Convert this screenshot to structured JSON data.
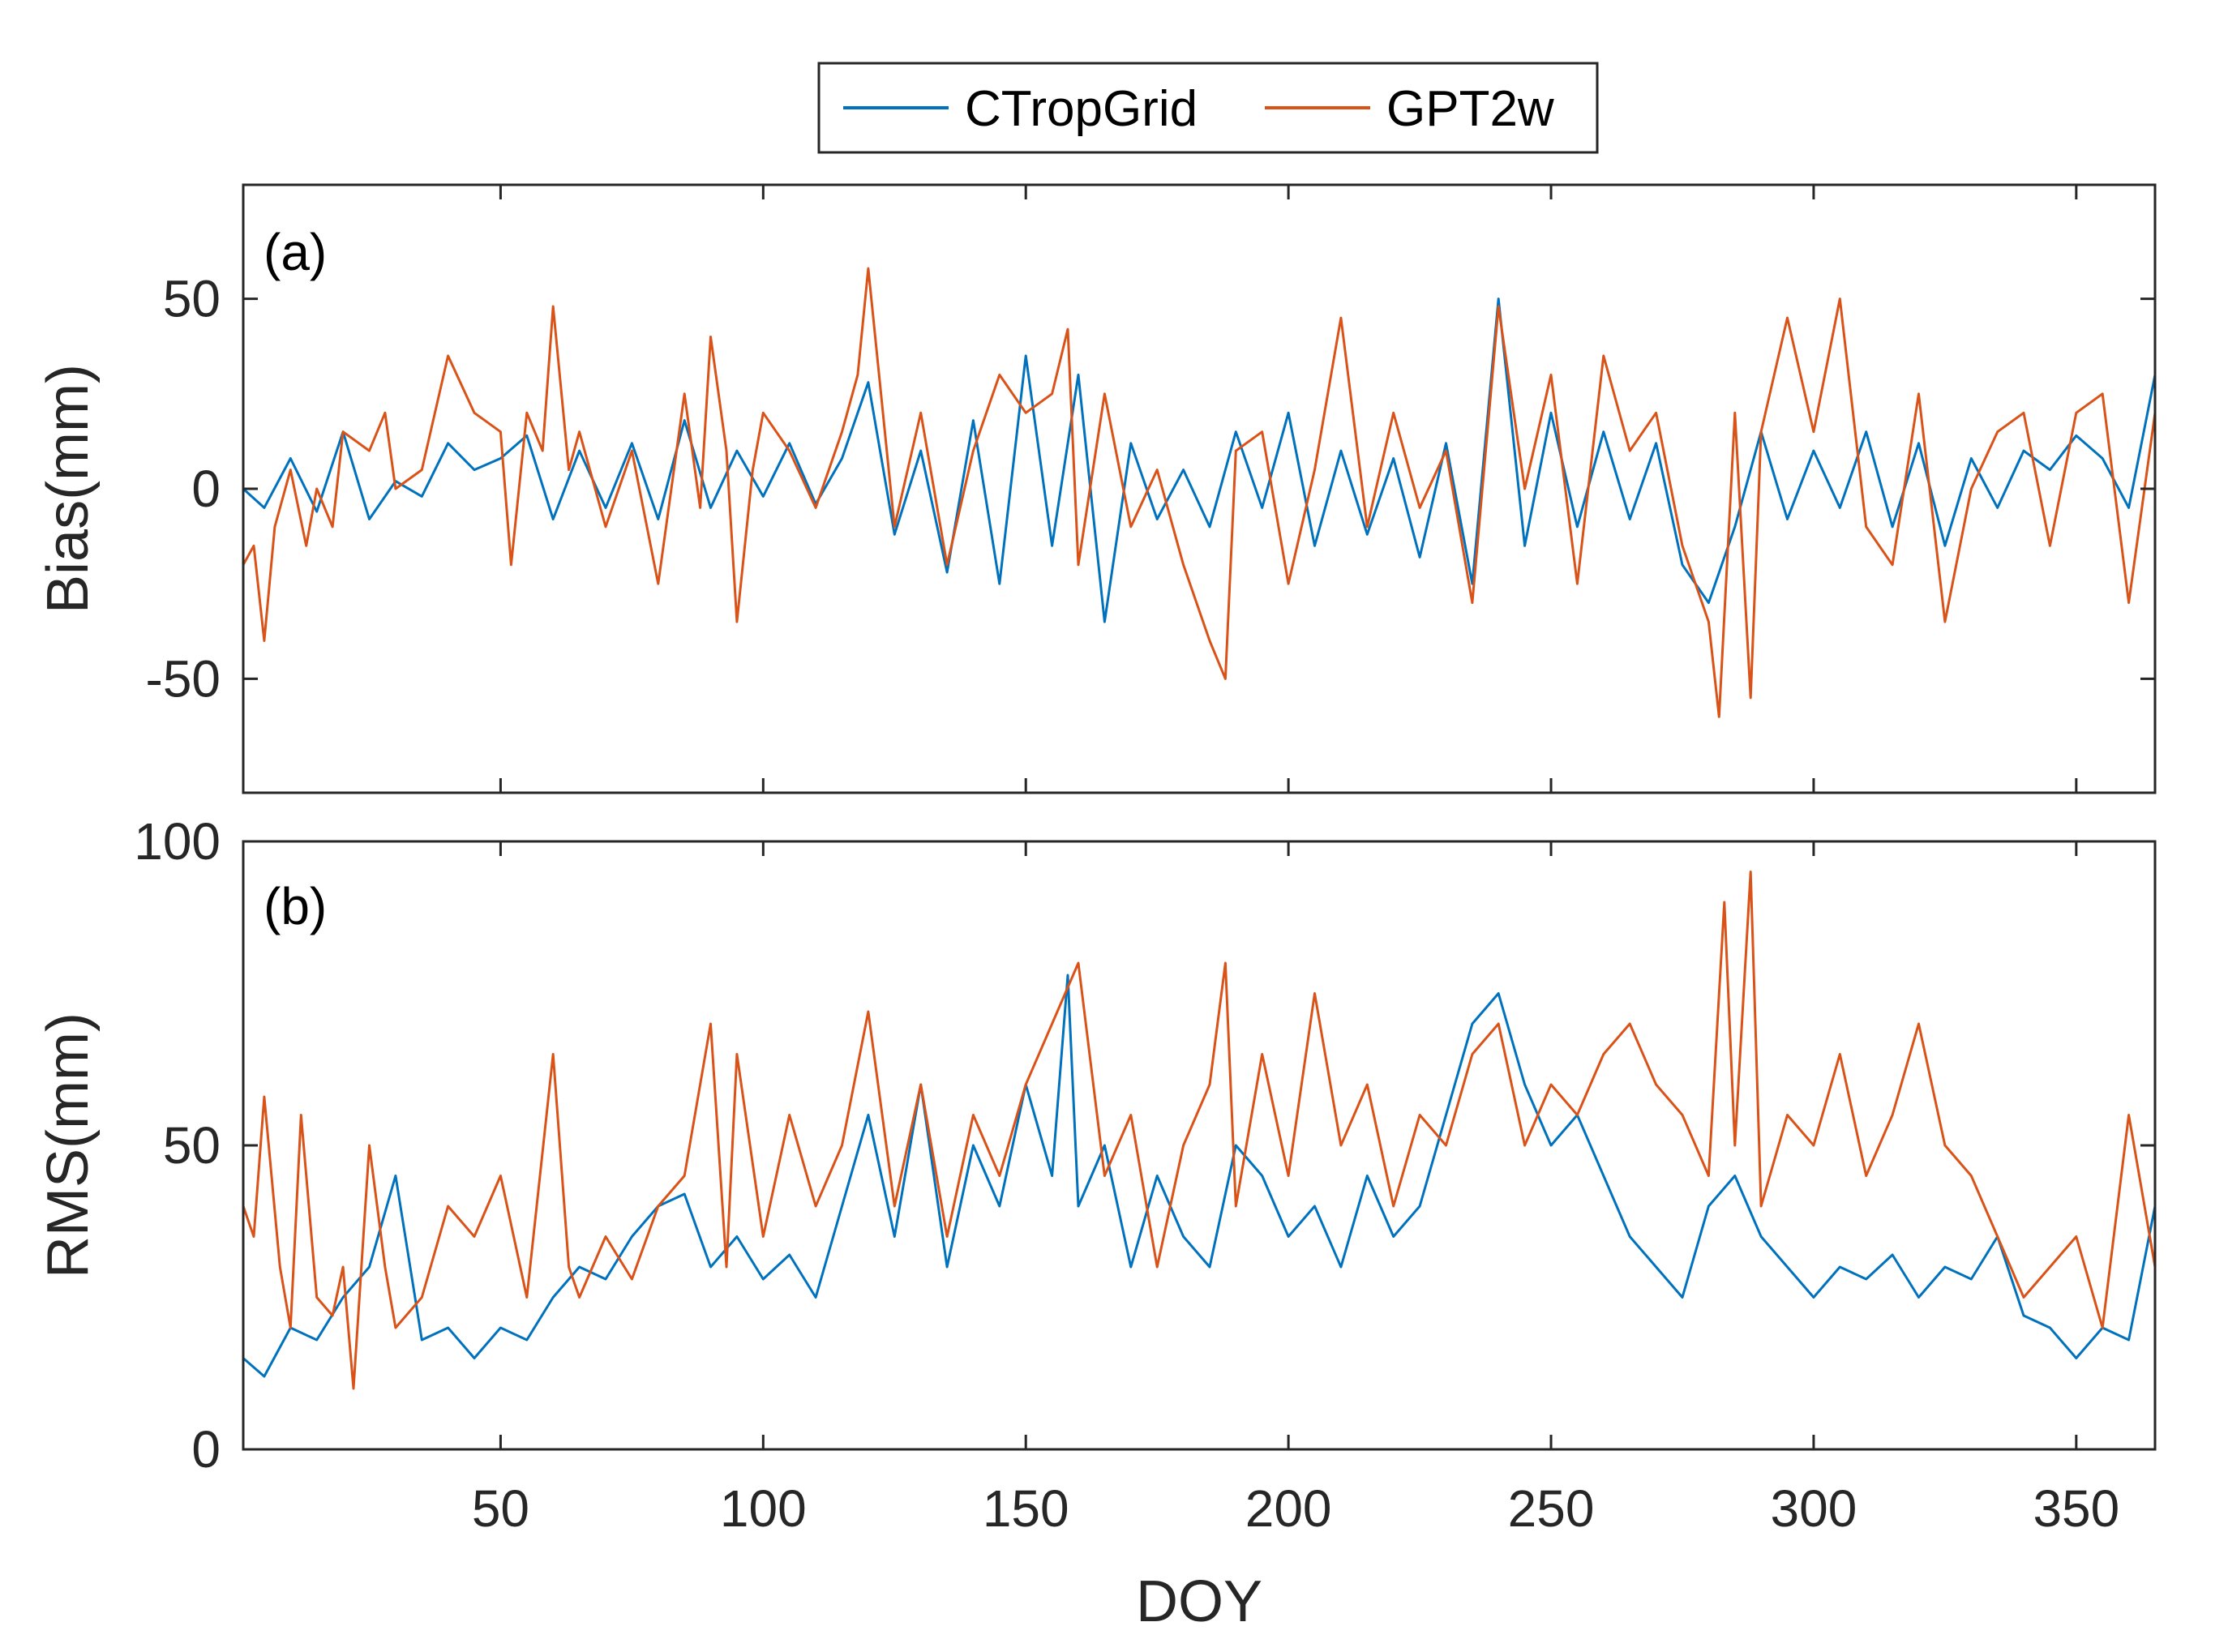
{
  "chart_data": [
    {
      "type": "line",
      "panel_label": "(a)",
      "ylabel": "Bias(mm)",
      "ylim": [
        -80,
        80
      ],
      "yticks": [
        -50,
        0,
        50
      ],
      "ytick_labels": [
        "-50",
        "0",
        "50"
      ],
      "xlim": [
        1,
        365
      ],
      "xticks": [
        50,
        100,
        150,
        200,
        250,
        300,
        350
      ],
      "legend": "top-center",
      "series": [
        {
          "name": "CTropGrid",
          "color": "#0072BD",
          "x": [
            1,
            5,
            10,
            15,
            20,
            25,
            30,
            35,
            40,
            45,
            50,
            55,
            60,
            65,
            70,
            75,
            80,
            85,
            90,
            95,
            100,
            105,
            110,
            115,
            120,
            125,
            130,
            135,
            140,
            145,
            150,
            155,
            160,
            165,
            170,
            175,
            180,
            185,
            190,
            195,
            200,
            205,
            210,
            215,
            220,
            225,
            230,
            235,
            240,
            245,
            250,
            255,
            260,
            265,
            270,
            275,
            280,
            285,
            290,
            295,
            300,
            305,
            310,
            315,
            320,
            325,
            330,
            335,
            340,
            345,
            350,
            355,
            360,
            365
          ],
          "values": [
            0,
            -5,
            8,
            -6,
            15,
            -8,
            2,
            -2,
            12,
            5,
            8,
            14,
            -8,
            10,
            -5,
            12,
            -8,
            18,
            -5,
            10,
            -2,
            12,
            -4,
            8,
            28,
            -12,
            10,
            -22,
            18,
            -25,
            35,
            -15,
            30,
            -35,
            12,
            -8,
            5,
            -10,
            15,
            -5,
            20,
            -15,
            10,
            -12,
            8,
            -18,
            12,
            -25,
            50,
            -15,
            20,
            -10,
            15,
            -8,
            12,
            -20,
            -30,
            -10,
            15,
            -8,
            10,
            -5,
            15,
            -10,
            12,
            -15,
            8,
            -5,
            10,
            5,
            14,
            8,
            -5,
            30
          ]
        },
        {
          "name": "GPT2w",
          "color": "#D95319",
          "x": [
            1,
            3,
            5,
            7,
            10,
            13,
            15,
            18,
            20,
            25,
            28,
            30,
            35,
            40,
            45,
            50,
            52,
            55,
            58,
            60,
            63,
            65,
            70,
            75,
            80,
            85,
            88,
            90,
            93,
            95,
            98,
            100,
            105,
            110,
            115,
            118,
            120,
            125,
            130,
            135,
            140,
            145,
            150,
            155,
            158,
            160,
            165,
            170,
            175,
            180,
            185,
            188,
            190,
            195,
            200,
            205,
            210,
            215,
            220,
            225,
            230,
            235,
            240,
            245,
            250,
            255,
            260,
            265,
            270,
            275,
            280,
            282,
            285,
            288,
            290,
            295,
            300,
            305,
            310,
            315,
            320,
            325,
            330,
            335,
            340,
            345,
            350,
            355,
            360,
            365
          ],
          "values": [
            -20,
            -15,
            -40,
            -10,
            5,
            -15,
            0,
            -10,
            15,
            10,
            20,
            0,
            5,
            35,
            20,
            15,
            -20,
            20,
            10,
            48,
            5,
            15,
            -10,
            10,
            -25,
            25,
            -5,
            40,
            10,
            -35,
            5,
            20,
            10,
            -5,
            15,
            30,
            58,
            -10,
            20,
            -20,
            10,
            30,
            20,
            25,
            42,
            -20,
            25,
            -10,
            5,
            -20,
            -40,
            -50,
            10,
            15,
            -25,
            5,
            45,
            -10,
            20,
            -5,
            10,
            -30,
            48,
            0,
            30,
            -25,
            35,
            10,
            20,
            -15,
            -35,
            -60,
            20,
            -55,
            15,
            45,
            15,
            50,
            -10,
            -20,
            25,
            -35,
            0,
            15,
            20,
            -15,
            20,
            25,
            -30,
            20
          ]
        }
      ]
    },
    {
      "type": "line",
      "panel_label": "(b)",
      "ylabel": "RMS(mm)",
      "ylim": [
        0,
        100
      ],
      "yticks": [
        0,
        50,
        100
      ],
      "ytick_labels": [
        "0",
        "50",
        "100"
      ],
      "xlabel": "DOY",
      "xlim": [
        1,
        365
      ],
      "xticks": [
        50,
        100,
        150,
        200,
        250,
        300,
        350
      ],
      "xtick_labels": [
        "50",
        "100",
        "150",
        "200",
        "250",
        "300",
        "350"
      ],
      "series": [
        {
          "name": "CTropGrid",
          "color": "#0072BD",
          "x": [
            1,
            5,
            10,
            15,
            20,
            25,
            30,
            35,
            40,
            45,
            50,
            55,
            60,
            65,
            70,
            75,
            80,
            85,
            90,
            95,
            100,
            105,
            110,
            115,
            120,
            125,
            130,
            135,
            140,
            145,
            150,
            155,
            158,
            160,
            165,
            170,
            175,
            180,
            185,
            190,
            195,
            200,
            205,
            210,
            215,
            220,
            225,
            230,
            235,
            240,
            245,
            250,
            255,
            260,
            265,
            270,
            275,
            280,
            285,
            290,
            295,
            300,
            305,
            310,
            315,
            320,
            325,
            330,
            335,
            340,
            345,
            350,
            355,
            360,
            365
          ],
          "values": [
            15,
            12,
            20,
            18,
            25,
            30,
            45,
            18,
            20,
            15,
            20,
            18,
            25,
            30,
            28,
            35,
            40,
            42,
            30,
            35,
            28,
            32,
            25,
            40,
            55,
            35,
            60,
            30,
            50,
            40,
            60,
            45,
            78,
            40,
            50,
            30,
            45,
            35,
            30,
            50,
            45,
            35,
            40,
            30,
            45,
            35,
            40,
            55,
            70,
            75,
            60,
            50,
            55,
            45,
            35,
            30,
            25,
            40,
            45,
            35,
            30,
            25,
            30,
            28,
            32,
            25,
            30,
            28,
            35,
            22,
            20,
            15,
            20,
            18,
            40
          ]
        },
        {
          "name": "GPT2w",
          "color": "#D95319",
          "x": [
            1,
            3,
            5,
            8,
            10,
            12,
            15,
            18,
            20,
            22,
            25,
            28,
            30,
            35,
            40,
            45,
            50,
            55,
            60,
            63,
            65,
            70,
            75,
            80,
            85,
            90,
            93,
            95,
            100,
            105,
            110,
            115,
            120,
            125,
            130,
            135,
            140,
            145,
            150,
            155,
            160,
            165,
            170,
            175,
            180,
            185,
            188,
            190,
            195,
            200,
            205,
            210,
            215,
            220,
            225,
            230,
            235,
            240,
            245,
            250,
            255,
            260,
            265,
            270,
            275,
            280,
            283,
            285,
            288,
            290,
            295,
            300,
            305,
            310,
            315,
            320,
            325,
            330,
            335,
            340,
            345,
            350,
            355,
            360,
            365
          ],
          "values": [
            40,
            35,
            58,
            30,
            20,
            55,
            25,
            22,
            30,
            10,
            50,
            30,
            20,
            25,
            40,
            35,
            45,
            25,
            65,
            30,
            25,
            35,
            28,
            40,
            45,
            70,
            30,
            65,
            35,
            55,
            40,
            50,
            72,
            40,
            60,
            35,
            55,
            45,
            60,
            70,
            80,
            45,
            55,
            30,
            50,
            60,
            80,
            40,
            65,
            45,
            75,
            50,
            60,
            40,
            55,
            50,
            65,
            70,
            50,
            60,
            55,
            65,
            70,
            60,
            55,
            45,
            90,
            50,
            95,
            40,
            55,
            50,
            65,
            45,
            55,
            70,
            50,
            45,
            35,
            25,
            30,
            35,
            20,
            55,
            30
          ]
        }
      ]
    }
  ]
}
